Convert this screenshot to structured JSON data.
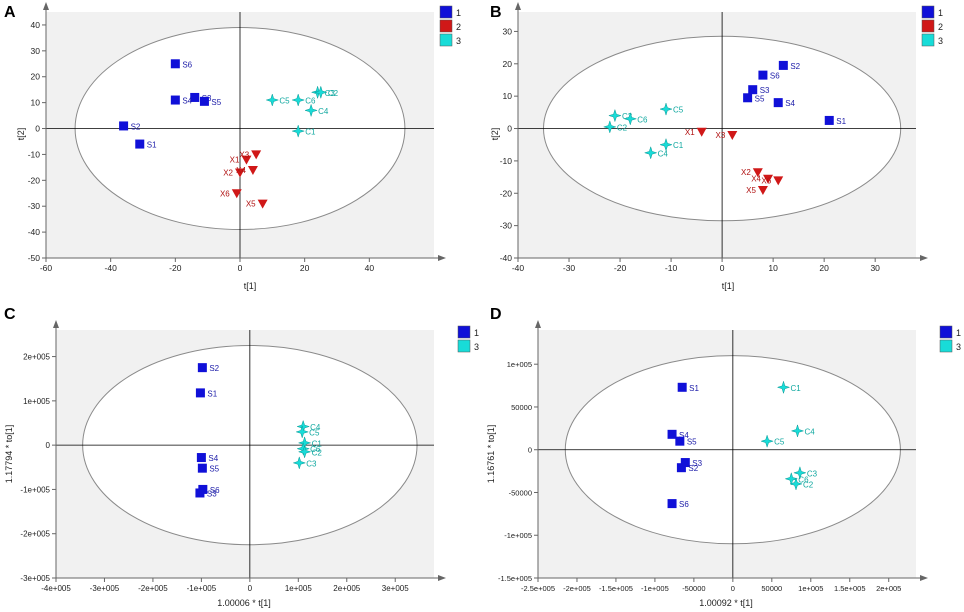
{
  "colors": {
    "group_1": "#1010d8",
    "group_2": "#d01818",
    "group_3": "#18dcd8",
    "label_1": "#1a1aa8",
    "label_2": "#b01010",
    "label_3": "#10a8a0",
    "plot_bg": "#f1f1f1",
    "ellipse": "#8a8a8a",
    "axis": "#000000"
  },
  "chart_data": [
    {
      "panel": "A",
      "type": "scatter",
      "xlabel": "t[1]",
      "ylabel": "t[2]",
      "xlim": [
        -60,
        60
      ],
      "ylim": [
        -50,
        45
      ],
      "xticks": [
        "-60",
        "-40",
        "-20",
        "0",
        "20",
        "40"
      ],
      "xtick_values": [
        -60,
        -40,
        -20,
        0,
        20,
        40
      ],
      "yticks": [
        "-50",
        "-40",
        "-30",
        "-20",
        "-10",
        "0",
        "10",
        "20",
        "30",
        "40"
      ],
      "ytick_values": [
        -50,
        -40,
        -30,
        -20,
        -10,
        0,
        10,
        20,
        30,
        40
      ],
      "ellipse": {
        "center": [
          0,
          0
        ],
        "rx": 51,
        "ry": 39
      },
      "legend": [
        {
          "label": "1",
          "group": "1"
        },
        {
          "label": "2",
          "group": "2"
        },
        {
          "label": "3",
          "group": "3"
        }
      ],
      "series": [
        {
          "name": "1",
          "marker": "square",
          "points": [
            {
              "label": "S6",
              "x": -20,
              "y": 25
            },
            {
              "label": "S3",
              "x": -14,
              "y": 12
            },
            {
              "label": "S4",
              "x": -20,
              "y": 11
            },
            {
              "label": "S5",
              "x": -11,
              "y": 10.5
            },
            {
              "label": "S2",
              "x": -36,
              "y": 1
            },
            {
              "label": "S1",
              "x": -31,
              "y": -6
            }
          ]
        },
        {
          "name": "2",
          "marker": "triangle",
          "points": [
            {
              "label": "X1",
              "x": 2,
              "y": -12
            },
            {
              "label": "X3",
              "x": 5,
              "y": -10
            },
            {
              "label": "X2",
              "x": 0,
              "y": -17
            },
            {
              "label": "X4",
              "x": 4,
              "y": -16
            },
            {
              "label": "X6",
              "x": -1,
              "y": -25
            },
            {
              "label": "X5",
              "x": 7,
              "y": -29
            }
          ]
        },
        {
          "name": "3",
          "marker": "star",
          "points": [
            {
              "label": "C6",
              "x": 18,
              "y": 11
            },
            {
              "label": "C3",
              "x": 24,
              "y": 14
            },
            {
              "label": "C2",
              "x": 25,
              "y": 14
            },
            {
              "label": "C5",
              "x": 10,
              "y": 11
            },
            {
              "label": "C4",
              "x": 22,
              "y": 7
            },
            {
              "label": "C1",
              "x": 18,
              "y": -1
            }
          ]
        }
      ]
    },
    {
      "panel": "B",
      "type": "scatter",
      "xlabel": "t[1]",
      "ylabel": "t[2]",
      "xlim": [
        -40,
        38
      ],
      "ylim": [
        -40,
        36
      ],
      "xticks": [
        "-40",
        "-30",
        "-20",
        "-10",
        "0",
        "10",
        "20",
        "30"
      ],
      "xtick_values": [
        -40,
        -30,
        -20,
        -10,
        0,
        10,
        20,
        30
      ],
      "yticks": [
        "-40",
        "-30",
        "-20",
        "-10",
        "0",
        "10",
        "20",
        "30"
      ],
      "ytick_values": [
        -40,
        -30,
        -20,
        -10,
        0,
        10,
        20,
        30
      ],
      "ellipse": {
        "center": [
          0,
          0
        ],
        "rx": 35,
        "ry": 28.5
      },
      "legend": [
        {
          "label": "1",
          "group": "1"
        },
        {
          "label": "2",
          "group": "2"
        },
        {
          "label": "3",
          "group": "3"
        }
      ],
      "series": [
        {
          "name": "1",
          "marker": "square",
          "points": [
            {
              "label": "S2",
              "x": 12,
              "y": 19.5
            },
            {
              "label": "S6",
              "x": 8,
              "y": 16.5
            },
            {
              "label": "S3",
              "x": 6,
              "y": 12
            },
            {
              "label": "S5",
              "x": 5,
              "y": 9.5
            },
            {
              "label": "S4",
              "x": 11,
              "y": 8
            },
            {
              "label": "S1",
              "x": 21,
              "y": 2.5
            }
          ]
        },
        {
          "name": "2",
          "marker": "triangle",
          "points": [
            {
              "label": "X1",
              "x": -4,
              "y": -1
            },
            {
              "label": "X3",
              "x": 2,
              "y": -2
            },
            {
              "label": "X2",
              "x": 7,
              "y": -13.5
            },
            {
              "label": "X4",
              "x": 9,
              "y": -15.5
            },
            {
              "label": "X6",
              "x": 11,
              "y": -16
            },
            {
              "label": "X5",
              "x": 8,
              "y": -19
            }
          ]
        },
        {
          "name": "3",
          "marker": "star",
          "points": [
            {
              "label": "C3",
              "x": -21,
              "y": 4
            },
            {
              "label": "C6",
              "x": -18,
              "y": 3
            },
            {
              "label": "C5",
              "x": -11,
              "y": 6
            },
            {
              "label": "C2",
              "x": -22,
              "y": 0.5
            },
            {
              "label": "C1",
              "x": -11,
              "y": -5
            },
            {
              "label": "C4",
              "x": -14,
              "y": -7.5
            }
          ]
        }
      ]
    },
    {
      "panel": "C",
      "type": "scatter",
      "xlabel": "1.00006 * t[1]",
      "ylabel": "1.17794 * to[1]",
      "xlim": [
        -400000,
        380000
      ],
      "ylim": [
        -300000,
        260000
      ],
      "xticks": [
        "-4e+005",
        "-3e+005",
        "-2e+005",
        "-1e+005",
        "0",
        "1e+005",
        "2e+005",
        "3e+005"
      ],
      "xtick_values": [
        -400000,
        -300000,
        -200000,
        -100000,
        0,
        100000,
        200000,
        300000
      ],
      "yticks": [
        "-3e+005",
        "-2e+005",
        "-1e+005",
        "0",
        "1e+005",
        "2e+005"
      ],
      "ytick_values": [
        -300000,
        -200000,
        -100000,
        0,
        100000,
        200000
      ],
      "ellipse": {
        "center": [
          0,
          0
        ],
        "rx": 345000,
        "ry": 225000
      },
      "legend": [
        {
          "label": "1",
          "group": "1"
        },
        {
          "label": "3",
          "group": "3"
        }
      ],
      "series": [
        {
          "name": "1",
          "marker": "square",
          "points": [
            {
              "label": "S2",
              "x": -98000,
              "y": 175000
            },
            {
              "label": "S1",
              "x": -102000,
              "y": 118000
            },
            {
              "label": "S4",
              "x": -100000,
              "y": -28000
            },
            {
              "label": "S5",
              "x": -98000,
              "y": -52000
            },
            {
              "label": "S6",
              "x": -97000,
              "y": -100000
            },
            {
              "label": "S3",
              "x": -103000,
              "y": -108000
            }
          ]
        },
        {
          "name": "3",
          "marker": "star",
          "points": [
            {
              "label": "C4",
              "x": 110000,
              "y": 42000
            },
            {
              "label": "C5",
              "x": 108000,
              "y": 30000
            },
            {
              "label": "C1",
              "x": 113000,
              "y": 5000
            },
            {
              "label": "C6",
              "x": 110000,
              "y": -8000
            },
            {
              "label": "C2",
              "x": 113000,
              "y": -15000
            },
            {
              "label": "C3",
              "x": 102000,
              "y": -40000
            }
          ]
        }
      ]
    },
    {
      "panel": "D",
      "type": "scatter",
      "xlabel": "1.00092 * t[1]",
      "ylabel": "1.16761 * to[1]",
      "xlim": [
        -250000,
        235000
      ],
      "ylim": [
        -150000,
        140000
      ],
      "xticks": [
        "-2.5e+005",
        "-2e+005",
        "-1.5e+005",
        "-1e+005",
        "-50000",
        "0",
        "50000",
        "1e+005",
        "1.5e+005",
        "2e+005"
      ],
      "xtick_values": [
        -250000,
        -200000,
        -150000,
        -100000,
        -50000,
        0,
        50000,
        100000,
        150000,
        200000
      ],
      "yticks": [
        "-1.5e+005",
        "-1e+005",
        "-50000",
        "0",
        "50000",
        "1e+005"
      ],
      "ytick_values": [
        -150000,
        -100000,
        -50000,
        0,
        50000,
        100000
      ],
      "ellipse": {
        "center": [
          0,
          0
        ],
        "rx": 215000,
        "ry": 110000
      },
      "legend": [
        {
          "label": "1",
          "group": "1"
        },
        {
          "label": "3",
          "group": "3"
        }
      ],
      "series": [
        {
          "name": "1",
          "marker": "square",
          "points": [
            {
              "label": "S1",
              "x": -65000,
              "y": 73000
            },
            {
              "label": "S4",
              "x": -78000,
              "y": 18000
            },
            {
              "label": "S5",
              "x": -68000,
              "y": 10000
            },
            {
              "label": "S3",
              "x": -61000,
              "y": -15000
            },
            {
              "label": "S2",
              "x": -66000,
              "y": -21000
            },
            {
              "label": "S6",
              "x": -78000,
              "y": -63000
            }
          ]
        },
        {
          "name": "3",
          "marker": "star",
          "points": [
            {
              "label": "C1",
              "x": 65000,
              "y": 73000
            },
            {
              "label": "C4",
              "x": 83000,
              "y": 22000
            },
            {
              "label": "C5",
              "x": 44000,
              "y": 10000
            },
            {
              "label": "C3",
              "x": 86000,
              "y": -27000
            },
            {
              "label": "C6",
              "x": 75000,
              "y": -34000
            },
            {
              "label": "C2",
              "x": 81000,
              "y": -40000
            }
          ]
        }
      ]
    }
  ]
}
